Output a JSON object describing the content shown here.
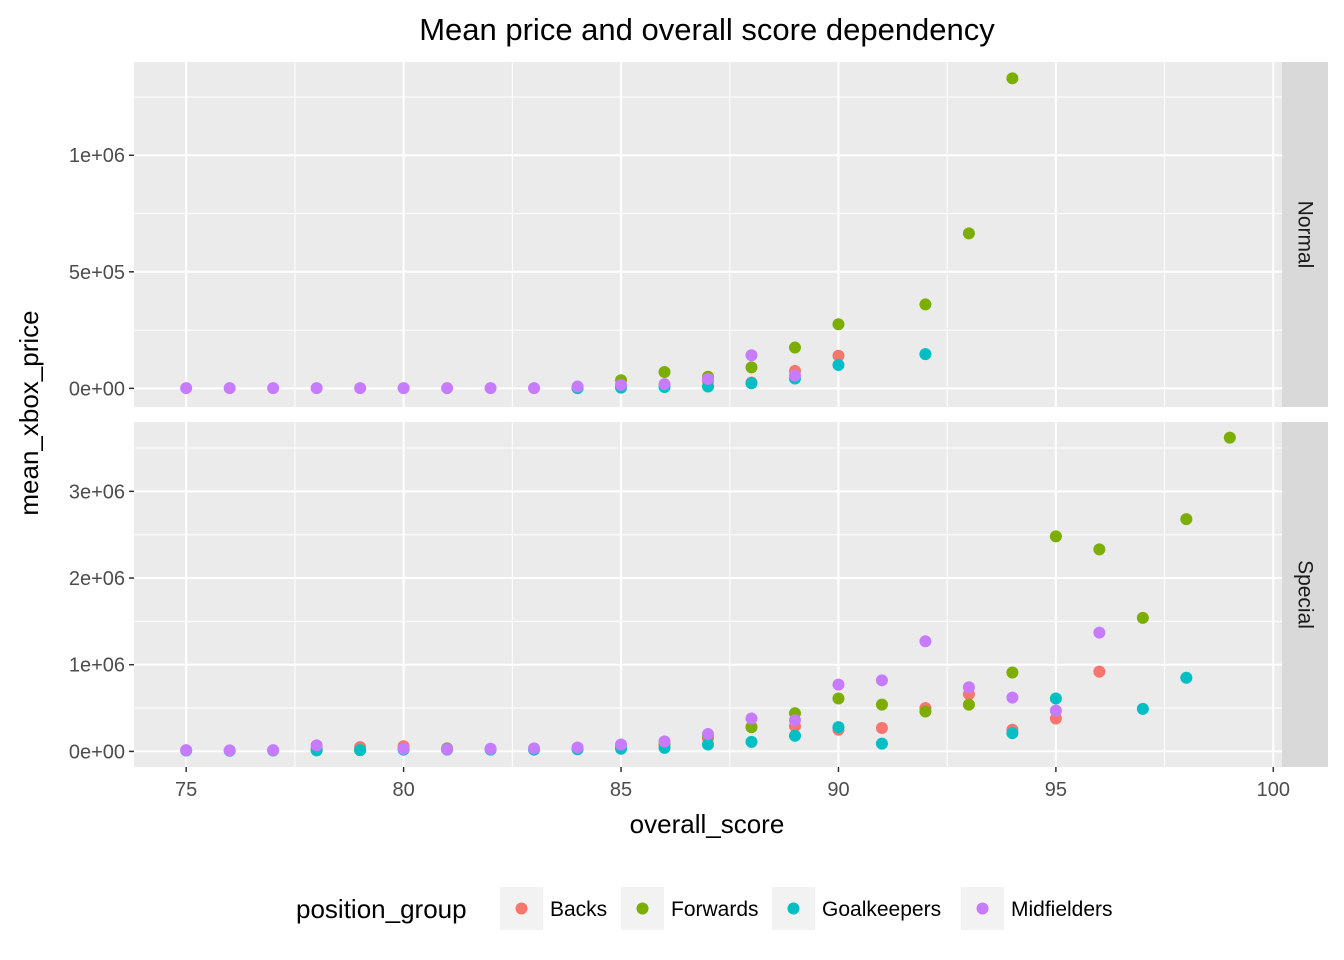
{
  "chart_data": {
    "type": "scatter",
    "title": "Mean price and overall score dependency",
    "xlabel": "overall_score",
    "ylabel": "mean_xbox_price",
    "xlim": [
      73.8,
      100.2
    ],
    "x_ticks": [
      75,
      80,
      85,
      90,
      95,
      100
    ],
    "grid": true,
    "legend": {
      "title": "position_group",
      "placement": "bottom",
      "items": [
        "Backs",
        "Forwards",
        "Goalkeepers",
        "Midfielders"
      ]
    },
    "colors": {
      "Backs": "#F8766D",
      "Forwards": "#7CAE00",
      "Goalkeepers": "#00BFC4",
      "Midfielders": "#C77CFF"
    },
    "panels": [
      {
        "label": "Normal",
        "ylim": [
          -80000,
          1400000
        ],
        "y_ticks": [
          0,
          500000,
          1000000
        ],
        "y_tick_labels": [
          "0e+00",
          "5e+05",
          "1e+06"
        ],
        "series": [
          {
            "name": "Backs",
            "points": [
              [
                84,
                3000
              ],
              [
                85,
                7000
              ],
              [
                86,
                12000
              ],
              [
                87,
                30000
              ],
              [
                88,
                25000
              ],
              [
                89,
                75000
              ],
              [
                90,
                140000
              ]
            ]
          },
          {
            "name": "Forwards",
            "points": [
              [
                85,
                35000
              ],
              [
                86,
                70000
              ],
              [
                87,
                50000
              ],
              [
                88,
                90000
              ],
              [
                89,
                175000
              ],
              [
                90,
                275000
              ],
              [
                92,
                360000
              ],
              [
                93,
                665000
              ],
              [
                94,
                1330000
              ]
            ]
          },
          {
            "name": "Goalkeepers",
            "points": [
              [
                84,
                1000
              ],
              [
                85,
                3000
              ],
              [
                86,
                6000
              ],
              [
                87,
                8000
              ],
              [
                88,
                22000
              ],
              [
                89,
                42000
              ],
              [
                90,
                100000
              ],
              [
                92,
                147000
              ]
            ]
          },
          {
            "name": "Midfielders",
            "points": [
              [
                75,
                1000
              ],
              [
                76,
                1000
              ],
              [
                77,
                1000
              ],
              [
                78,
                1000
              ],
              [
                79,
                1000
              ],
              [
                80,
                1000
              ],
              [
                81,
                1000
              ],
              [
                82,
                1000
              ],
              [
                83,
                1000
              ],
              [
                84,
                8000
              ],
              [
                85,
                15000
              ],
              [
                86,
                18000
              ],
              [
                87,
                40000
              ],
              [
                88,
                142000
              ],
              [
                89,
                55000
              ]
            ]
          }
        ]
      },
      {
        "label": "Special",
        "ylim": [
          -180000,
          3800000
        ],
        "y_ticks": [
          0,
          1000000,
          2000000,
          3000000
        ],
        "y_tick_labels": [
          "0e+00",
          "1e+06",
          "2e+06",
          "3e+06"
        ],
        "series": [
          {
            "name": "Backs",
            "points": [
              [
                78,
                40000
              ],
              [
                79,
                50000
              ],
              [
                80,
                60000
              ],
              [
                81,
                30000
              ],
              [
                82,
                25000
              ],
              [
                84,
                30000
              ],
              [
                85,
                50000
              ],
              [
                86,
                80000
              ],
              [
                87,
                150000
              ],
              [
                88,
                280000
              ],
              [
                89,
                290000
              ],
              [
                90,
                250000
              ],
              [
                91,
                270000
              ],
              [
                92,
                500000
              ],
              [
                93,
                660000
              ],
              [
                94,
                250000
              ],
              [
                95,
                380000
              ],
              [
                96,
                920000
              ]
            ]
          },
          {
            "name": "Forwards",
            "points": [
              [
                78,
                20000
              ],
              [
                79,
                15000
              ],
              [
                81,
                35000
              ],
              [
                85,
                50000
              ],
              [
                86,
                80000
              ],
              [
                87,
                180000
              ],
              [
                88,
                280000
              ],
              [
                89,
                440000
              ],
              [
                90,
                610000
              ],
              [
                91,
                540000
              ],
              [
                92,
                460000
              ],
              [
                93,
                540000
              ],
              [
                94,
                910000
              ],
              [
                95,
                2480000
              ],
              [
                96,
                2330000
              ],
              [
                97,
                1540000
              ],
              [
                98,
                2680000
              ],
              [
                99,
                3620000
              ]
            ]
          },
          {
            "name": "Goalkeepers",
            "points": [
              [
                75,
                10000
              ],
              [
                76,
                8000
              ],
              [
                77,
                10000
              ],
              [
                78,
                12000
              ],
              [
                79,
                15000
              ],
              [
                80,
                20000
              ],
              [
                81,
                20000
              ],
              [
                82,
                20000
              ],
              [
                83,
                20000
              ],
              [
                84,
                25000
              ],
              [
                85,
                30000
              ],
              [
                86,
                40000
              ],
              [
                87,
                80000
              ],
              [
                88,
                110000
              ],
              [
                89,
                180000
              ],
              [
                90,
                280000
              ],
              [
                91,
                90000
              ],
              [
                94,
                210000
              ],
              [
                95,
                610000
              ],
              [
                97,
                490000
              ],
              [
                98,
                850000
              ]
            ]
          },
          {
            "name": "Midfielders",
            "points": [
              [
                75,
                15000
              ],
              [
                76,
                12000
              ],
              [
                77,
                15000
              ],
              [
                78,
                70000
              ],
              [
                80,
                30000
              ],
              [
                81,
                25000
              ],
              [
                82,
                30000
              ],
              [
                83,
                35000
              ],
              [
                84,
                45000
              ],
              [
                85,
                80000
              ],
              [
                86,
                115000
              ],
              [
                87,
                200000
              ],
              [
                88,
                380000
              ],
              [
                89,
                360000
              ],
              [
                90,
                770000
              ],
              [
                91,
                820000
              ],
              [
                92,
                1270000
              ],
              [
                93,
                740000
              ],
              [
                94,
                620000
              ],
              [
                95,
                470000
              ],
              [
                96,
                1370000
              ]
            ]
          }
        ]
      }
    ]
  }
}
